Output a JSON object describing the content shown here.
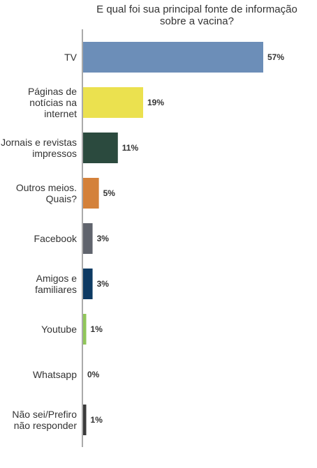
{
  "chart_data": {
    "type": "bar",
    "orientation": "horizontal",
    "title": "E qual foi sua principal fonte de informação sobre a vacina?",
    "title_lines": [
      "E qual foi sua principal fonte de informação",
      "sobre a vacina?"
    ],
    "categories": [
      "TV",
      "Páginas de notícias na internet",
      "Jornais e revistas impressos",
      "Outros meios. Quais?",
      "Facebook",
      "Amigos e familiares",
      "Youtube",
      "Whatsapp",
      "Não sei/Prefiro não responder"
    ],
    "category_lines": [
      [
        "TV"
      ],
      [
        "Páginas de",
        "notícias na",
        "internet"
      ],
      [
        "Jornais e revistas",
        "impressos"
      ],
      [
        "Outros meios.",
        "Quais?"
      ],
      [
        "Facebook"
      ],
      [
        "Amigos e",
        "familiares"
      ],
      [
        "Youtube"
      ],
      [
        "Whatsapp"
      ],
      [
        "Não sei/Prefiro",
        "não responder"
      ]
    ],
    "values": [
      57,
      19,
      11,
      5,
      3,
      3,
      1,
      0,
      1
    ],
    "value_labels": [
      "57%",
      "19%",
      "11%",
      "5%",
      "3%",
      "3%",
      "1%",
      "0%",
      "1%"
    ],
    "colors": [
      "#6c8eb8",
      "#ebe14f",
      "#2b4a3e",
      "#d4813a",
      "#60646d",
      "#0d3a63",
      "#90c659",
      "#cccccc",
      "#3a3a3a"
    ],
    "xlim": [
      0,
      60
    ],
    "grid": false,
    "legend": "none"
  }
}
